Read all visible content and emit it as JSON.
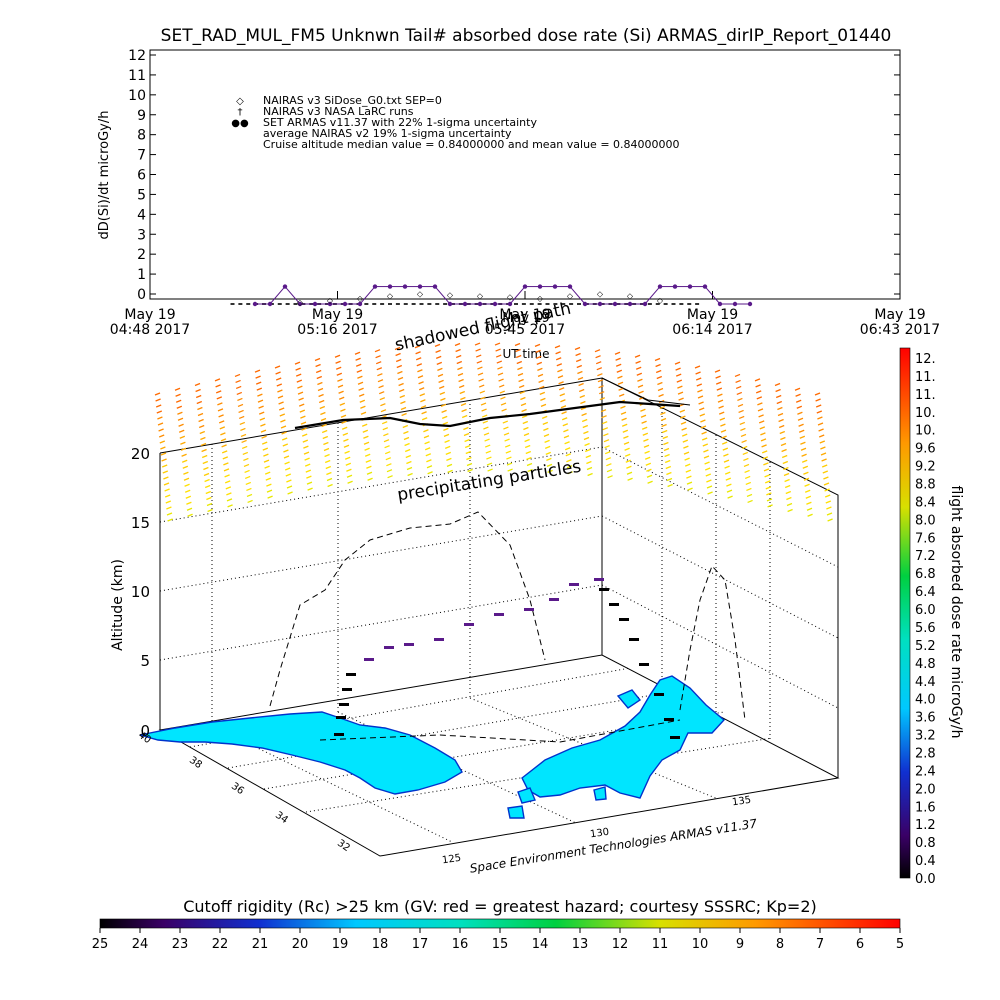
{
  "title": "SET_RAD_MUL_FM5 Unknwn Tail#  absorbed dose rate (Si) ARMAS_dirIP_Report_01440",
  "chart_data": [
    {
      "type": "scatter",
      "ylabel": "dD(Si)/dt microGy/h",
      "xlabel": "UT time",
      "ylim": [
        0,
        12
      ],
      "yticks": [
        "0",
        "1",
        "2",
        "3",
        "4",
        "5",
        "6",
        "7",
        "8",
        "9",
        "10",
        "11",
        "12"
      ],
      "xticks": [
        {
          "line1": "May 19",
          "line2": "04:48 2017"
        },
        {
          "line1": "May 19",
          "line2": "05:16 2017"
        },
        {
          "line1": "May 19",
          "line2": "05:45 2017"
        },
        {
          "line1": "May 19",
          "line2": "06:14 2017"
        },
        {
          "line1": "May 19",
          "line2": "06:43 2017"
        }
      ],
      "legend": [
        {
          "symbol": "◇",
          "label": "NAIRAS v3 SiDose_G0.txt SEP=0"
        },
        {
          "symbol": "†",
          "label": "NAIRAS v3 NASA LaRC runs"
        },
        {
          "symbol": "●",
          "label": "SET ARMAS v11.37 with 22% 1-sigma uncertainty"
        },
        {
          "symbol": "",
          "label": "average NAIRAS v2 19% 1-sigma uncertainty"
        },
        {
          "symbol": "",
          "label": "Cruise altitude median value = 0.84000000 and mean value = 0.84000000"
        }
      ],
      "series": [
        {
          "name": "SET ARMAS v11.37 with 22% 1-sigma uncertainty",
          "x": [
            0.14,
            0.16,
            0.18,
            0.2,
            0.22,
            0.24,
            0.26,
            0.28,
            0.3,
            0.32,
            0.34,
            0.36,
            0.38,
            0.4,
            0.42,
            0.44,
            0.46,
            0.48,
            0.5,
            0.52,
            0.54,
            0.56,
            0.58,
            0.6,
            0.62,
            0.64,
            0.66,
            0.68,
            0.7,
            0.72,
            0.74,
            0.76,
            0.78,
            0.8
          ],
          "y": [
            0,
            0,
            0.84,
            0,
            0,
            0,
            0,
            0,
            0.84,
            0.84,
            0.84,
            0.84,
            0.84,
            0,
            0,
            0,
            0,
            0,
            0.84,
            0.84,
            0.84,
            0.84,
            0,
            0,
            0,
            0,
            0,
            0.84,
            0.84,
            0.84,
            0.84,
            0,
            0,
            0
          ]
        },
        {
          "name": "NAIRAS v3 SiDose_G0.txt SEP=0",
          "x": [
            0.2,
            0.24,
            0.28,
            0.32,
            0.36,
            0.4,
            0.44,
            0.48,
            0.52,
            0.56,
            0.6,
            0.64,
            0.68
          ],
          "y": [
            0.1,
            0.2,
            0.3,
            0.4,
            0.5,
            0.45,
            0.4,
            0.35,
            0.3,
            0.4,
            0.5,
            0.4,
            0.2
          ]
        }
      ]
    },
    {
      "type": "scatter",
      "zlabel": "Altitude (km)",
      "zticks": [
        "0",
        "5",
        "10",
        "15",
        "20"
      ],
      "latticks": [
        "40",
        "38",
        "36",
        "34",
        "32"
      ],
      "lonticks": [
        "125",
        "130",
        "135"
      ],
      "annotations": [
        "precipitating particles",
        "shadowed flight path",
        "May 19"
      ],
      "credit": "Space Environment Technologies ARMAS v11.37"
    }
  ],
  "dose_colorbar": {
    "label": "flight absorbed dose rate microGy/h",
    "ticks": [
      "12.",
      "11.",
      "11.",
      "10.",
      "10.",
      "9.6",
      "9.2",
      "8.8",
      "8.4",
      "8.0",
      "7.6",
      "7.2",
      "6.8",
      "6.4",
      "6.0",
      "5.6",
      "5.2",
      "4.8",
      "4.4",
      "4.0",
      "3.6",
      "3.2",
      "2.8",
      "2.4",
      "2.0",
      "1.6",
      "1.2",
      "0.8",
      "0.4",
      "0.0"
    ]
  },
  "rigidity_colorbar": {
    "label": "Cutoff rigidity (Rc) >25 km (GV: red = greatest hazard; courtesy SSSRC; Kp=2)",
    "ticks": [
      "25",
      "24",
      "23",
      "22",
      "21",
      "20",
      "19",
      "18",
      "17",
      "16",
      "15",
      "14",
      "13",
      "12",
      "11",
      "10",
      "9",
      "8",
      "7",
      "6",
      "5"
    ]
  },
  "colors": {
    "land": "#00e5ff",
    "coast": "#0033cc",
    "armas_points": "#5a1a8a",
    "nairas_points": "#444444"
  }
}
